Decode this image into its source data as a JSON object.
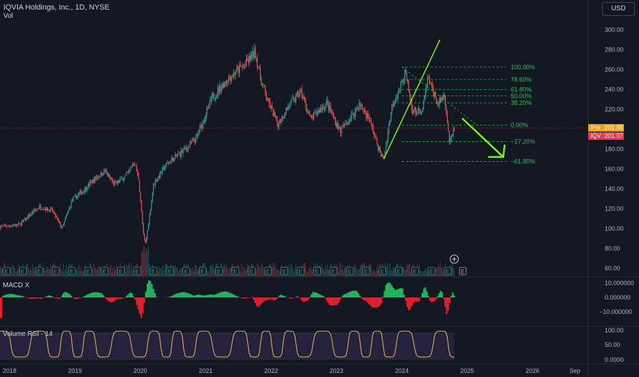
{
  "header": {
    "title": "IQVIA Holdings, Inc., 1D, NYSE",
    "volume_label": "Vol",
    "currency_button": "USD"
  },
  "price_tags": {
    "pre_symbol": "Pre",
    "pre_value": "201.68",
    "pre_color": "#f0a30a",
    "last_symbol": "IQV",
    "last_value": "201.07",
    "last_color": "#f23645"
  },
  "macd": {
    "label": "MACD X",
    "ticks": [
      "10.000000",
      "0.000000",
      "−10.000000"
    ]
  },
  "rsi": {
    "label": "Volume RSI · 14",
    "ticks": [
      "100.00",
      "50.00",
      "0.0000"
    ]
  },
  "colors": {
    "background": "#131722",
    "up": "#26a69a",
    "down": "#ef5350",
    "fib": "#22c55e",
    "annotation": "#7cfc00",
    "rsi_line": "#e8c15a",
    "macd_pos": "#22c55e",
    "macd_neg": "#f5222d"
  },
  "chart_data": {
    "type": "candlestick",
    "symbol": "IQV",
    "x_axis": {
      "labels": [
        "2018",
        "2019",
        "2020",
        "2021",
        "2022",
        "2023",
        "2024",
        "2025",
        "2026",
        "Sep"
      ],
      "positions": [
        2018,
        2019,
        2020,
        2021,
        2022,
        2023,
        2024,
        2025,
        2026,
        2026.67
      ],
      "range": [
        2018.0,
        2027.0
      ]
    },
    "y_axis": {
      "ticks": [
        60,
        80,
        100,
        120,
        140,
        160,
        180,
        200,
        220,
        240,
        260,
        280,
        300,
        320
      ],
      "range": [
        52,
        330
      ]
    },
    "price_path": [
      [
        2018.0,
        102
      ],
      [
        2018.3,
        104
      ],
      [
        2018.6,
        122
      ],
      [
        2018.8,
        118
      ],
      [
        2018.95,
        100
      ],
      [
        2019.1,
        128
      ],
      [
        2019.3,
        140
      ],
      [
        2019.45,
        150
      ],
      [
        2019.6,
        158
      ],
      [
        2019.75,
        144
      ],
      [
        2019.95,
        155
      ],
      [
        2020.05,
        168
      ],
      [
        2020.12,
        150
      ],
      [
        2020.2,
        90
      ],
      [
        2020.23,
        85
      ],
      [
        2020.35,
        145
      ],
      [
        2020.55,
        165
      ],
      [
        2020.8,
        178
      ],
      [
        2021.0,
        190
      ],
      [
        2021.25,
        232
      ],
      [
        2021.5,
        252
      ],
      [
        2021.75,
        265
      ],
      [
        2021.9,
        278
      ],
      [
        2022.0,
        248
      ],
      [
        2022.1,
        228
      ],
      [
        2022.25,
        205
      ],
      [
        2022.4,
        222
      ],
      [
        2022.6,
        238
      ],
      [
        2022.75,
        210
      ],
      [
        2022.9,
        220
      ],
      [
        2023.0,
        226
      ],
      [
        2023.2,
        198
      ],
      [
        2023.35,
        210
      ],
      [
        2023.5,
        225
      ],
      [
        2023.65,
        210
      ],
      [
        2023.82,
        175
      ],
      [
        2023.87,
        170
      ],
      [
        2024.0,
        225
      ],
      [
        2024.1,
        238
      ],
      [
        2024.2,
        258
      ],
      [
        2024.3,
        220
      ],
      [
        2024.45,
        215
      ],
      [
        2024.55,
        252
      ],
      [
        2024.7,
        225
      ],
      [
        2024.8,
        235
      ],
      [
        2024.88,
        185
      ],
      [
        2024.95,
        201
      ]
    ],
    "fibonacci": [
      {
        "label": "100.00%",
        "price": 262.5
      },
      {
        "label": "78.60%",
        "price": 250.0
      },
      {
        "label": "61.80%",
        "price": 240.0
      },
      {
        "label": "50.00%",
        "price": 233.5
      },
      {
        "label": "38.20%",
        "price": 226.5
      },
      {
        "label": "0.00%",
        "price": 204.0
      },
      {
        "label": "−27.20%",
        "price": 187.5
      },
      {
        "label": "−61.80%",
        "price": 167.5
      }
    ],
    "trendline": [
      [
        2023.87,
        170
      ],
      [
        2024.73,
        290
      ]
    ],
    "projection_arrow": [
      [
        2025.07,
        211
      ],
      [
        2025.7,
        172
      ]
    ],
    "current_price": 201.07,
    "earnings_marker": "E"
  }
}
